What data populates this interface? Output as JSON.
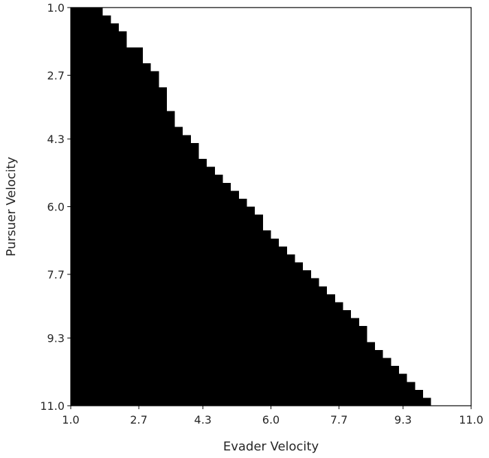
{
  "chart_data": {
    "type": "heatmap",
    "title": "",
    "xlabel": "Evader Velocity",
    "ylabel": "Pursuer Velocity",
    "xlim": [
      1.0,
      11.0
    ],
    "ylim": [
      1.0,
      11.0
    ],
    "y_inverted": true,
    "x_ticks": [
      "1.0",
      "2.7",
      "4.3",
      "6.0",
      "7.7",
      "9.3",
      "11.0"
    ],
    "y_ticks": [
      "1.0",
      "2.7",
      "4.3",
      "6.0",
      "7.7",
      "9.3",
      "11.0"
    ],
    "grid": false,
    "legend": "none",
    "colors": {
      "filled": "#000000",
      "empty": "#ffffff",
      "frame": "#000000"
    },
    "grid_size": 50,
    "boundary_description": "For each pursuer velocity row (1.0 at top to 11.0 at bottom, 50 rows), cells with evader velocity below the listed boundary are filled black.",
    "row_pursuer_velocity": [
      1.1,
      1.3,
      1.5,
      1.7,
      1.9,
      2.1,
      2.3,
      2.5,
      2.7,
      2.9,
      3.1,
      3.3,
      3.5,
      3.7,
      3.9,
      4.1,
      4.3,
      4.5,
      4.7,
      4.9,
      5.1,
      5.3,
      5.5,
      5.7,
      5.9,
      6.1,
      6.3,
      6.5,
      6.7,
      6.9,
      7.1,
      7.3,
      7.5,
      7.7,
      7.9,
      8.1,
      8.3,
      8.5,
      8.7,
      8.9,
      9.1,
      9.3,
      9.5,
      9.7,
      9.9,
      10.1,
      10.3,
      10.5,
      10.7,
      10.9
    ],
    "boundary_evader_velocity": [
      1.8,
      2.0,
      2.2,
      2.4,
      2.4,
      2.8,
      2.8,
      3.0,
      3.2,
      3.2,
      3.4,
      3.4,
      3.4,
      3.6,
      3.6,
      3.8,
      4.0,
      4.2,
      4.2,
      4.4,
      4.6,
      4.8,
      5.0,
      5.2,
      5.4,
      5.6,
      5.8,
      5.8,
      6.0,
      6.2,
      6.4,
      6.6,
      6.8,
      7.0,
      7.2,
      7.4,
      7.6,
      7.8,
      8.0,
      8.2,
      8.4,
      8.4,
      8.6,
      8.8,
      9.0,
      9.2,
      9.4,
      9.6,
      9.8,
      10.0
    ]
  }
}
